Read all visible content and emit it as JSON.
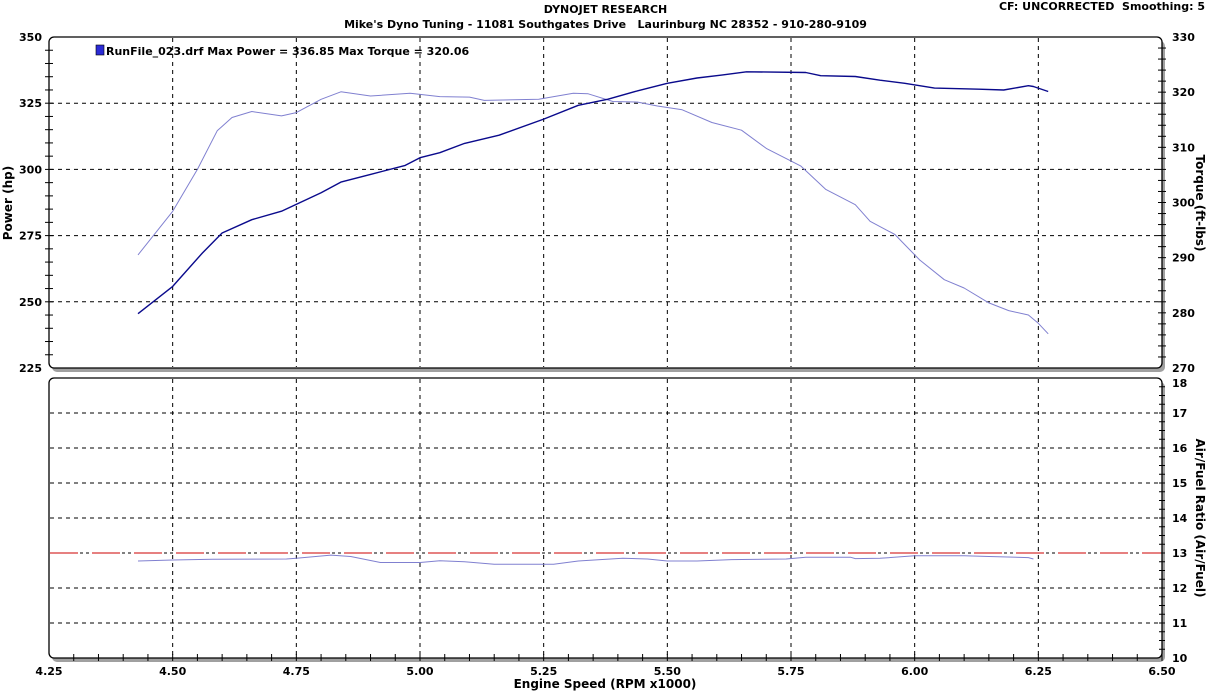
{
  "header": {
    "title": "DYNOJET RESEARCH",
    "subtitle": "Mike's Dyno Tuning - 11081 Southgates Drive   Laurinburg NC 28352 - 910-280-9109",
    "settings": "CF: UNCORRECTED  Smoothing: 5"
  },
  "legend": {
    "label": "RunFile_023.drf Max Power = 336.85     Max Torque = 320.06",
    "swatch_color": "#2b2bd6"
  },
  "chart_data": [
    {
      "type": "line",
      "panel": "top",
      "xlabel": "Engine Speed (RPM x1000)",
      "ylabel": "Power (hp)",
      "y2label": "Torque (ft-lbs)",
      "xlim": [
        4.25,
        6.5
      ],
      "ylim": [
        225,
        350
      ],
      "y2lim": [
        270,
        330
      ],
      "xticks": [
        "4.25",
        "4.50",
        "4.75",
        "5.00",
        "5.25",
        "5.50",
        "5.75",
        "6.00",
        "6.25",
        "6.50"
      ],
      "yticks": [
        "225",
        "250",
        "275",
        "300",
        "325",
        "350"
      ],
      "y2ticks": [
        "270",
        "280",
        "290",
        "300",
        "310",
        "320",
        "330"
      ],
      "grid": true,
      "legend_position": "top-left",
      "series": [
        {
          "name": "RunFile_023.drf",
          "quantity": "power",
          "axis": "left",
          "color": "#0a0a8c",
          "points": [
            [
              4.43,
              245.5
            ],
            [
              4.5,
              255.8
            ],
            [
              4.56,
              268.4
            ],
            [
              4.6,
              276
            ],
            [
              4.66,
              281
            ],
            [
              4.72,
              284.2
            ],
            [
              4.8,
              291.2
            ],
            [
              4.84,
              295.2
            ],
            [
              4.9,
              298.1
            ],
            [
              4.97,
              301.5
            ],
            [
              5.0,
              304.4
            ],
            [
              5.04,
              306.3
            ],
            [
              5.09,
              309.8
            ],
            [
              5.16,
              312.9
            ],
            [
              5.25,
              319
            ],
            [
              5.32,
              324.2
            ],
            [
              5.38,
              326.5
            ],
            [
              5.44,
              329.7
            ],
            [
              5.5,
              332.5
            ],
            [
              5.56,
              334.5
            ],
            [
              5.61,
              335.6
            ],
            [
              5.66,
              336.85
            ],
            [
              5.78,
              336.6
            ],
            [
              5.81,
              335.4
            ],
            [
              5.88,
              335.1
            ],
            [
              5.93,
              333.7
            ],
            [
              5.98,
              332.5
            ],
            [
              6.04,
              330.7
            ],
            [
              6.13,
              330.3
            ],
            [
              6.18,
              330
            ],
            [
              6.23,
              331.6
            ],
            [
              6.24,
              331.3
            ],
            [
              6.27,
              329.4
            ]
          ]
        },
        {
          "name": "RunFile_023.drf",
          "quantity": "torque",
          "axis": "right",
          "color": "#8080d0",
          "points": [
            [
              4.43,
              290.5
            ],
            [
              4.5,
              298.4
            ],
            [
              4.55,
              306
            ],
            [
              4.59,
              313
            ],
            [
              4.62,
              315.4
            ],
            [
              4.66,
              316.5
            ],
            [
              4.72,
              315.7
            ],
            [
              4.75,
              316.3
            ],
            [
              4.8,
              318.7
            ],
            [
              4.84,
              320.06
            ],
            [
              4.9,
              319.3
            ],
            [
              4.98,
              319.8
            ],
            [
              5.04,
              319.2
            ],
            [
              5.1,
              319.1
            ],
            [
              5.13,
              318.5
            ],
            [
              5.24,
              318.7
            ],
            [
              5.31,
              319.8
            ],
            [
              5.34,
              319.7
            ],
            [
              5.39,
              318.3
            ],
            [
              5.44,
              318.2
            ],
            [
              5.48,
              317.5
            ],
            [
              5.53,
              316.8
            ],
            [
              5.59,
              314.5
            ],
            [
              5.65,
              313.1
            ],
            [
              5.7,
              309.8
            ],
            [
              5.77,
              306.6
            ],
            [
              5.82,
              302.4
            ],
            [
              5.88,
              299.6
            ],
            [
              5.91,
              296.6
            ],
            [
              5.96,
              294.2
            ],
            [
              6.01,
              289.6
            ],
            [
              6.06,
              286
            ],
            [
              6.1,
              284.5
            ],
            [
              6.15,
              281.8
            ],
            [
              6.19,
              280.4
            ],
            [
              6.23,
              279.6
            ],
            [
              6.25,
              278.1
            ],
            [
              6.27,
              276.2
            ]
          ]
        }
      ]
    },
    {
      "type": "line",
      "panel": "bottom",
      "xlabel": "Engine Speed (RPM x1000)",
      "y2label": "Air/Fuel Ratio (Air/Fuel)",
      "xlim": [
        4.25,
        6.5
      ],
      "y2lim": [
        10,
        18
      ],
      "xticks": [
        "4.25",
        "4.50",
        "4.75",
        "5.00",
        "5.25",
        "5.50",
        "5.75",
        "6.00",
        "6.25",
        "6.50"
      ],
      "y2ticks": [
        "10",
        "11",
        "12",
        "13",
        "14",
        "15",
        "16",
        "17",
        "18"
      ],
      "grid": true,
      "reference_line": {
        "value": 13,
        "color": "#cc0000"
      },
      "series": [
        {
          "name": "RunFile_023.drf",
          "quantity": "air-fuel ratio",
          "axis": "right",
          "color": "#8080d0",
          "points": [
            [
              4.43,
              12.77
            ],
            [
              4.5,
              12.8
            ],
            [
              4.58,
              12.82
            ],
            [
              4.73,
              12.83
            ],
            [
              4.75,
              12.85
            ],
            [
              4.82,
              12.94
            ],
            [
              4.86,
              12.9
            ],
            [
              4.92,
              12.73
            ],
            [
              5.0,
              12.73
            ],
            [
              5.04,
              12.78
            ],
            [
              5.09,
              12.75
            ],
            [
              5.15,
              12.68
            ],
            [
              5.27,
              12.68
            ],
            [
              5.32,
              12.77
            ],
            [
              5.34,
              12.79
            ],
            [
              5.41,
              12.85
            ],
            [
              5.46,
              12.83
            ],
            [
              5.5,
              12.77
            ],
            [
              5.56,
              12.77
            ],
            [
              5.63,
              12.81
            ],
            [
              5.74,
              12.83
            ],
            [
              5.78,
              12.88
            ],
            [
              5.87,
              12.88
            ],
            [
              5.88,
              12.84
            ],
            [
              5.93,
              12.85
            ],
            [
              6.0,
              12.92
            ],
            [
              6.1,
              12.92
            ],
            [
              6.15,
              12.9
            ],
            [
              6.23,
              12.87
            ],
            [
              6.24,
              12.83
            ]
          ]
        }
      ]
    }
  ]
}
